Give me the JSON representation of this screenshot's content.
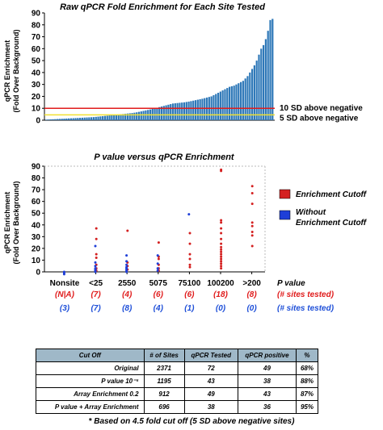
{
  "chart_data": [
    {
      "type": "bar",
      "title": "Raw qPCR Fold Enrichment for Each Site Tested",
      "ylabel": "qPCR Enrichment\n(Fold Over Background)",
      "ylim": [
        0,
        90
      ],
      "yticks": [
        "0",
        "10",
        "20",
        "30",
        "40",
        "50",
        "60",
        "70",
        "80",
        "90"
      ],
      "values": [
        0.5,
        0.6,
        0.7,
        0.8,
        0.9,
        1,
        1.1,
        1.2,
        1.3,
        1.4,
        1.5,
        1.6,
        1.7,
        1.8,
        1.9,
        2,
        2.1,
        2.2,
        2.3,
        2.4,
        2.5,
        2.6,
        2.8,
        3,
        3.2,
        3.4,
        3.6,
        3.8,
        4,
        4.2,
        4.4,
        4.6,
        4.8,
        5,
        5.2,
        5.4,
        5.6,
        5.8,
        6,
        6.3,
        6.6,
        7,
        7.4,
        7.8,
        8.2,
        8.6,
        9,
        9.5,
        10,
        10.5,
        11,
        11.5,
        12,
        12.5,
        13,
        13.5,
        14,
        14.2,
        14.4,
        14.6,
        14.8,
        15,
        15.3,
        15.6,
        16,
        16.4,
        16.8,
        17.2,
        17.6,
        18,
        18.5,
        19,
        19.5,
        20,
        21,
        22,
        23,
        24,
        25,
        26,
        27,
        28,
        28.5,
        29,
        30,
        31,
        32,
        33,
        35,
        37,
        40,
        43,
        46,
        50,
        55,
        60,
        63,
        68,
        75,
        84,
        85
      ],
      "bar_color": "#2e78b8",
      "reference_lines": [
        {
          "value": 10,
          "label": "10 SD above negative",
          "color": "#e01b1b"
        },
        {
          "value": 4.5,
          "label": "5 SD above negative",
          "color": "#f0e030"
        }
      ]
    },
    {
      "type": "scatter",
      "title": "P value versus qPCR Enrichment",
      "ylabel": "qPCR Enrichment\n(Fold Over Background)",
      "xlabel": "P value",
      "ylim": [
        0,
        90
      ],
      "yticks": [
        "0",
        "10",
        "20",
        "30",
        "40",
        "50",
        "60",
        "70",
        "80",
        "90"
      ],
      "categories": [
        "Nonsite",
        "<25",
        "2550",
        "5075",
        "75100",
        "100200",
        ">200"
      ],
      "count_rows": [
        {
          "label": "(# sites tested)",
          "color": "#e01b1b",
          "values": [
            "(N|A)",
            "(7)",
            "(4)",
            "(6)",
            "(6)",
            "(18)",
            "(8)"
          ]
        },
        {
          "label": "(# sites tested)",
          "color": "#1e4fd8",
          "values": [
            "(3)",
            "(7)",
            "(8)",
            "(4)",
            "(1)",
            "(0)",
            "(0)"
          ]
        }
      ],
      "series": [
        {
          "name": "Enrichment Cutoff",
          "color": "#d42020",
          "points": [
            [
              1,
              37
            ],
            [
              1,
              28
            ],
            [
              1,
              15
            ],
            [
              1,
              12
            ],
            [
              1,
              6
            ],
            [
              1,
              3
            ],
            [
              1,
              1
            ],
            [
              2,
              35
            ],
            [
              2,
              8
            ],
            [
              2,
              5
            ],
            [
              2,
              2
            ],
            [
              3,
              25
            ],
            [
              3,
              13
            ],
            [
              3,
              11
            ],
            [
              3,
              6
            ],
            [
              3,
              3
            ],
            [
              3,
              1
            ],
            [
              4,
              33
            ],
            [
              4,
              24
            ],
            [
              4,
              15
            ],
            [
              4,
              11
            ],
            [
              4,
              6
            ],
            [
              4,
              4
            ],
            [
              5,
              87
            ],
            [
              5,
              86
            ],
            [
              5,
              44
            ],
            [
              5,
              42
            ],
            [
              5,
              37
            ],
            [
              5,
              33
            ],
            [
              5,
              28
            ],
            [
              5,
              24
            ],
            [
              5,
              21
            ],
            [
              5,
              19
            ],
            [
              5,
              17
            ],
            [
              5,
              15
            ],
            [
              5,
              13
            ],
            [
              5,
              11
            ],
            [
              5,
              9
            ],
            [
              5,
              7
            ],
            [
              5,
              5
            ],
            [
              5,
              3
            ],
            [
              6,
              73
            ],
            [
              6,
              67
            ],
            [
              6,
              58
            ],
            [
              6,
              42
            ],
            [
              6,
              39
            ],
            [
              6,
              34
            ],
            [
              6,
              31
            ],
            [
              6,
              22
            ]
          ]
        },
        {
          "name": "Without Enrichment Cutoff",
          "color": "#1e3ed8",
          "points": [
            [
              0,
              0
            ],
            [
              0,
              -1
            ],
            [
              0,
              -2
            ],
            [
              1,
              22
            ],
            [
              1,
              8
            ],
            [
              1,
              5
            ],
            [
              1,
              3
            ],
            [
              1,
              2
            ],
            [
              1,
              1
            ],
            [
              1,
              0
            ],
            [
              2,
              14
            ],
            [
              2,
              9
            ],
            [
              2,
              6
            ],
            [
              2,
              4
            ],
            [
              2,
              3
            ],
            [
              2,
              2
            ],
            [
              2,
              1
            ],
            [
              2,
              0
            ],
            [
              3,
              14
            ],
            [
              3,
              7
            ],
            [
              3,
              3
            ],
            [
              3,
              1
            ],
            [
              4,
              49
            ]
          ]
        }
      ]
    }
  ],
  "table": {
    "headers": [
      "Cut Off",
      "# of Sites",
      "qPCR Tested",
      "qPCR positive",
      "%"
    ],
    "rows": [
      [
        "Original",
        "2371",
        "72",
        "49",
        "68%"
      ],
      [
        "P value 10⁻⁵",
        "1195",
        "43",
        "38",
        "88%"
      ],
      [
        "Array Enrichment 0.2",
        "912",
        "49",
        "43",
        "87%"
      ],
      [
        "P value + Array Enrichment",
        "696",
        "38",
        "36",
        "95%"
      ]
    ],
    "footnote": "* Based on 4.5 fold cut off (5 SD above negative sites)"
  }
}
